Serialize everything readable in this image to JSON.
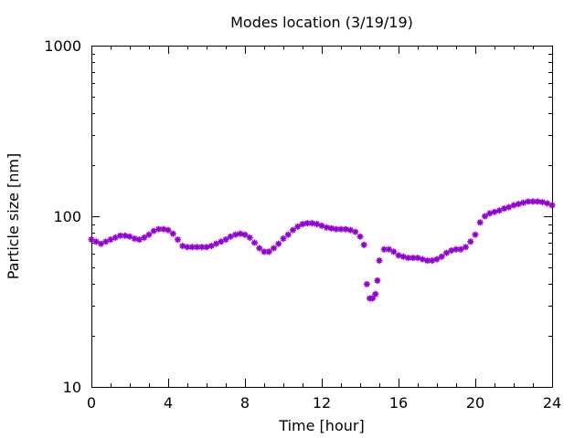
{
  "chart_data": {
    "type": "scatter",
    "title": "Modes location (3/19/19)",
    "xlabel": "Time [hour]",
    "ylabel": "Particle size [nm]",
    "xlim": [
      0,
      24
    ],
    "ylim": [
      10,
      1000
    ],
    "y_scale": "log",
    "x_ticks": [
      0,
      4,
      8,
      12,
      16,
      20,
      24
    ],
    "x_tick_labels": [
      "0",
      "4",
      "8",
      "12",
      "16",
      "20",
      "24"
    ],
    "y_ticks": [
      10,
      100,
      1000
    ],
    "y_tick_labels": [
      "10",
      "100",
      "1000"
    ],
    "grid": false,
    "legend": "none",
    "marker_color": "#9400d3",
    "series": [
      {
        "x": [
          0,
          0.25,
          0.5,
          0.75,
          1,
          1.25,
          1.5,
          1.75,
          2,
          2.25,
          2.5,
          2.75,
          3,
          3.25,
          3.5,
          3.75,
          4,
          4.25,
          4.5,
          4.75,
          5,
          5.25,
          5.5,
          5.75,
          6,
          6.25,
          6.5,
          6.75,
          7,
          7.25,
          7.5,
          7.75,
          8,
          8.25,
          8.5,
          8.75,
          9,
          9.25,
          9.5,
          9.75,
          10,
          10.25,
          10.5,
          10.75,
          11,
          11.25,
          11.5,
          11.75,
          12,
          12.25,
          12.5,
          12.75,
          13,
          13.25,
          13.5,
          13.75,
          14,
          14.2,
          14.35,
          14.5,
          14.65,
          14.8,
          14.9,
          15,
          15.25,
          15.5,
          15.75,
          16,
          16.25,
          16.5,
          16.75,
          17,
          17.25,
          17.5,
          17.75,
          18,
          18.25,
          18.5,
          18.75,
          19,
          19.25,
          19.5,
          19.75,
          20,
          20.25,
          20.5,
          20.75,
          21,
          21.25,
          21.5,
          21.75,
          22,
          22.25,
          22.5,
          22.75,
          23,
          23.25,
          23.5,
          23.75,
          24
        ],
        "y": [
          73,
          71,
          69,
          71,
          73,
          75,
          77,
          77,
          76,
          74,
          73,
          75,
          78,
          82,
          84,
          84,
          83,
          79,
          73,
          67,
          66,
          66,
          66,
          66,
          66,
          67,
          69,
          71,
          73,
          76,
          78,
          79,
          78,
          75,
          70,
          65,
          62,
          62,
          65,
          69,
          74,
          78,
          83,
          87,
          90,
          91,
          91,
          90,
          88,
          86,
          85,
          84,
          84,
          84,
          83,
          81,
          76,
          68,
          40,
          33,
          33,
          35,
          42,
          55,
          64,
          64,
          62,
          59,
          58,
          57,
          57,
          57,
          56,
          55,
          55,
          56,
          58,
          61,
          63,
          64,
          64,
          66,
          71,
          78,
          92,
          100,
          104,
          106,
          108,
          111,
          113,
          116,
          118,
          120,
          122,
          122,
          122,
          121,
          119,
          116
        ]
      }
    ]
  }
}
